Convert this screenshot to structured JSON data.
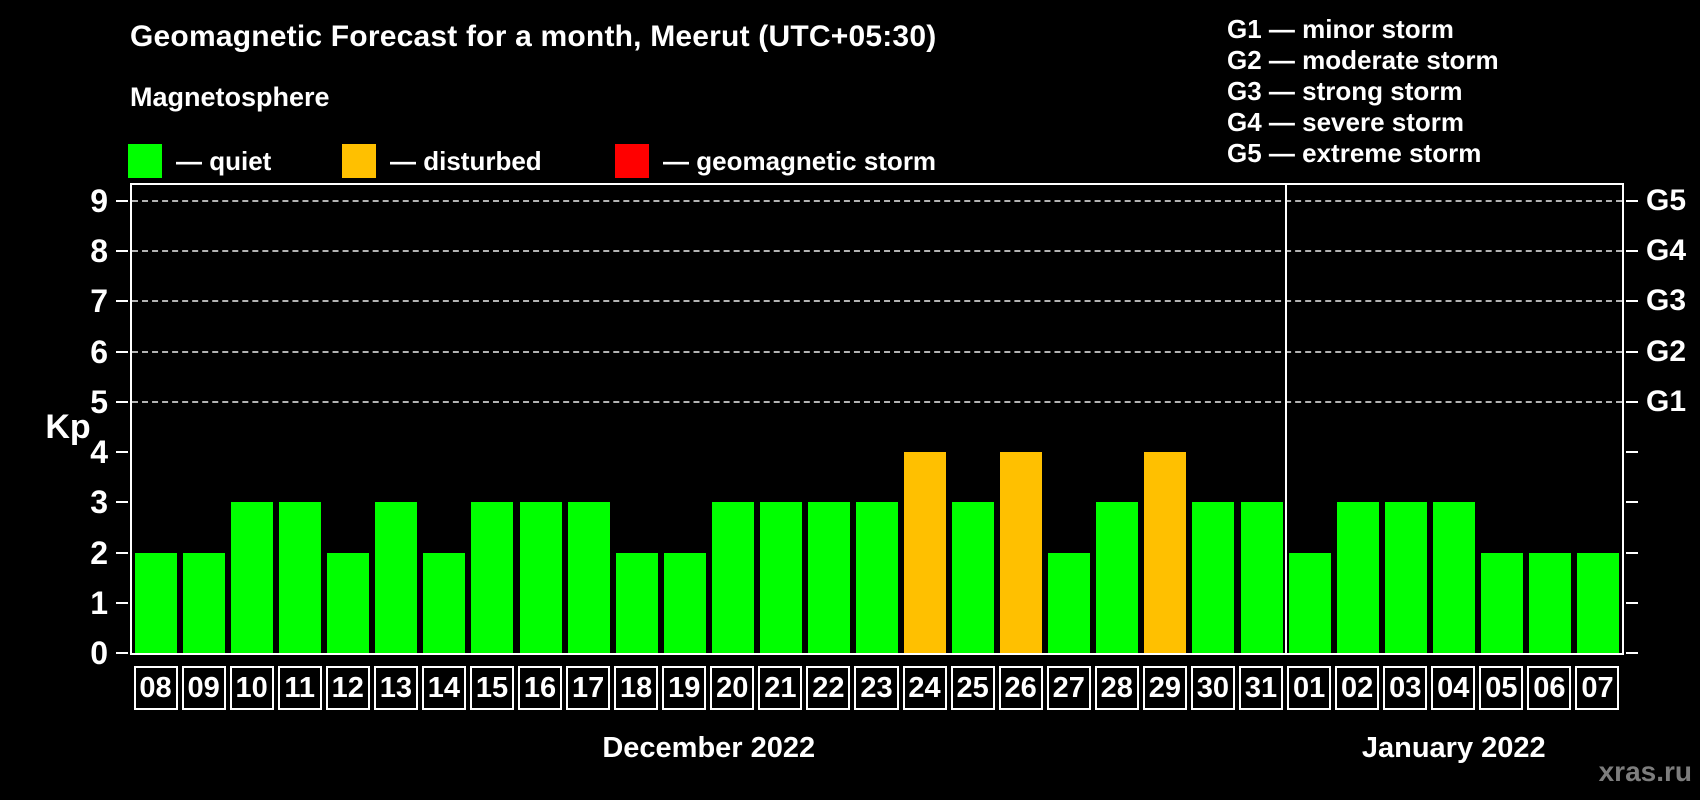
{
  "title": "Geomagnetic Forecast for a month, Meerut (UTC+05:30)",
  "legend": {
    "heading": "Magnetosphere",
    "items": [
      {
        "name": "quiet",
        "label": "— quiet",
        "color": "#00ff00"
      },
      {
        "name": "disturbed",
        "label": "— disturbed",
        "color": "#ffc000"
      },
      {
        "name": "geomagnetic-storm",
        "label": "— geomagnetic storm",
        "color": "#ff0000"
      }
    ]
  },
  "storm_scale_legend": [
    {
      "code": "G1",
      "label": "G1 — minor storm"
    },
    {
      "code": "G2",
      "label": "G2 — moderate storm"
    },
    {
      "code": "G3",
      "label": "G3 — strong storm"
    },
    {
      "code": "G4",
      "label": "G4 — severe storm"
    },
    {
      "code": "G5",
      "label": "G5 — extreme storm"
    }
  ],
  "watermark": "xras.ru",
  "chart_data": {
    "type": "bar",
    "title": "Geomagnetic Forecast for a month, Meerut (UTC+05:30)",
    "ylabel": "Kp",
    "ylim": [
      0,
      9.4
    ],
    "yticks": [
      0,
      1,
      2,
      3,
      4,
      5,
      6,
      7,
      8,
      9
    ],
    "gridlines_kp": [
      5,
      6,
      7,
      8,
      9
    ],
    "grid": "dashed horizontal lines at G1–G5 levels only",
    "legend_position": "top-left",
    "right_axis": [
      {
        "label": "G1",
        "kp": 5
      },
      {
        "label": "G2",
        "kp": 6
      },
      {
        "label": "G3",
        "kp": 7
      },
      {
        "label": "G4",
        "kp": 8
      },
      {
        "label": "G5",
        "kp": 9
      }
    ],
    "bar_colors": {
      "quiet": "#00ff00",
      "disturbed": "#ffc000",
      "storm": "#ff0000"
    },
    "months": [
      {
        "label": "December 2022",
        "days": [
          {
            "day": "08",
            "kp": 2,
            "status": "quiet"
          },
          {
            "day": "09",
            "kp": 2,
            "status": "quiet"
          },
          {
            "day": "10",
            "kp": 3,
            "status": "quiet"
          },
          {
            "day": "11",
            "kp": 3,
            "status": "quiet"
          },
          {
            "day": "12",
            "kp": 2,
            "status": "quiet"
          },
          {
            "day": "13",
            "kp": 3,
            "status": "quiet"
          },
          {
            "day": "14",
            "kp": 2,
            "status": "quiet"
          },
          {
            "day": "15",
            "kp": 3,
            "status": "quiet"
          },
          {
            "day": "16",
            "kp": 3,
            "status": "quiet"
          },
          {
            "day": "17",
            "kp": 3,
            "status": "quiet"
          },
          {
            "day": "18",
            "kp": 2,
            "status": "quiet"
          },
          {
            "day": "19",
            "kp": 2,
            "status": "quiet"
          },
          {
            "day": "20",
            "kp": 3,
            "status": "quiet"
          },
          {
            "day": "21",
            "kp": 3,
            "status": "quiet"
          },
          {
            "day": "22",
            "kp": 3,
            "status": "quiet"
          },
          {
            "day": "23",
            "kp": 3,
            "status": "quiet"
          },
          {
            "day": "24",
            "kp": 4,
            "status": "disturbed"
          },
          {
            "day": "25",
            "kp": 3,
            "status": "quiet"
          },
          {
            "day": "26",
            "kp": 4,
            "status": "disturbed"
          },
          {
            "day": "27",
            "kp": 2,
            "status": "quiet"
          },
          {
            "day": "28",
            "kp": 3,
            "status": "quiet"
          },
          {
            "day": "29",
            "kp": 4,
            "status": "disturbed"
          },
          {
            "day": "30",
            "kp": 3,
            "status": "quiet"
          },
          {
            "day": "31",
            "kp": 3,
            "status": "quiet"
          }
        ]
      },
      {
        "label": "January 2022",
        "days": [
          {
            "day": "01",
            "kp": 2,
            "status": "quiet"
          },
          {
            "day": "02",
            "kp": 3,
            "status": "quiet"
          },
          {
            "day": "03",
            "kp": 3,
            "status": "quiet"
          },
          {
            "day": "04",
            "kp": 3,
            "status": "quiet"
          },
          {
            "day": "05",
            "kp": 2,
            "status": "quiet"
          },
          {
            "day": "06",
            "kp": 2,
            "status": "quiet"
          },
          {
            "day": "07",
            "kp": 2,
            "status": "quiet"
          }
        ]
      }
    ]
  }
}
